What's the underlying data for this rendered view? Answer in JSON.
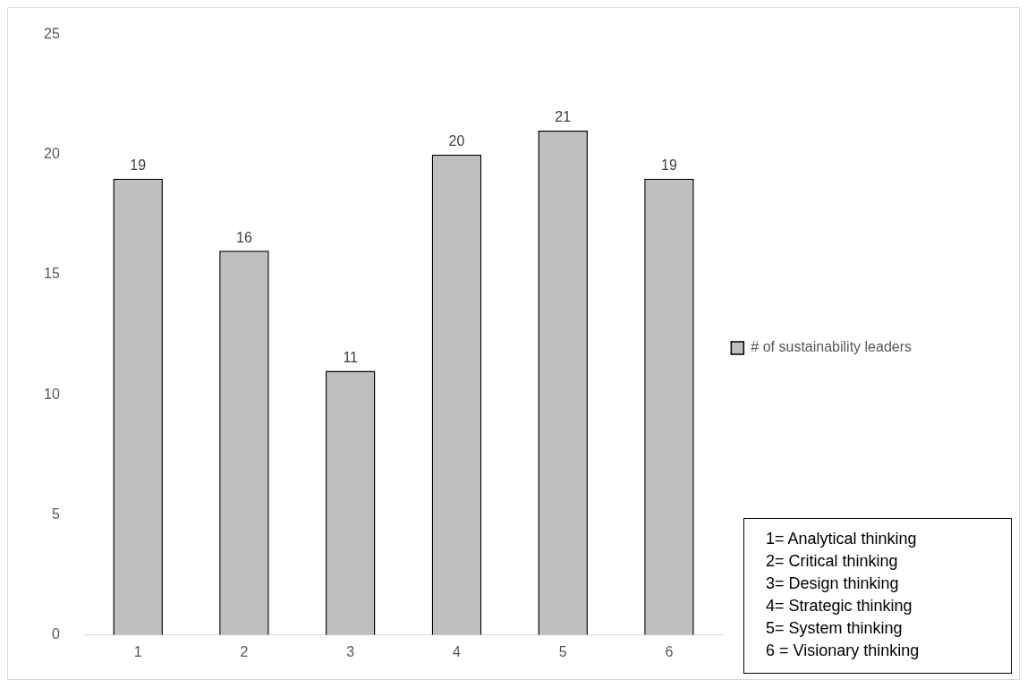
{
  "chart_data": {
    "type": "bar",
    "categories": [
      "1",
      "2",
      "3",
      "4",
      "5",
      "6"
    ],
    "series": [
      {
        "name": "# of sustainability leaders",
        "color": "#bfbfbf",
        "values": [
          19,
          16,
          11,
          20,
          21,
          19
        ]
      }
    ],
    "ylim": [
      0,
      25
    ],
    "yticks": [
      0,
      5,
      10,
      15,
      20,
      25
    ],
    "grid": false,
    "legend": "right",
    "data_labels": true,
    "annotations": [
      "1= Analytical thinking",
      "2= Critical thinking",
      "3= Design thinking",
      "4= Strategic thinking",
      "5= System thinking",
      "6 = Visionary thinking"
    ]
  }
}
